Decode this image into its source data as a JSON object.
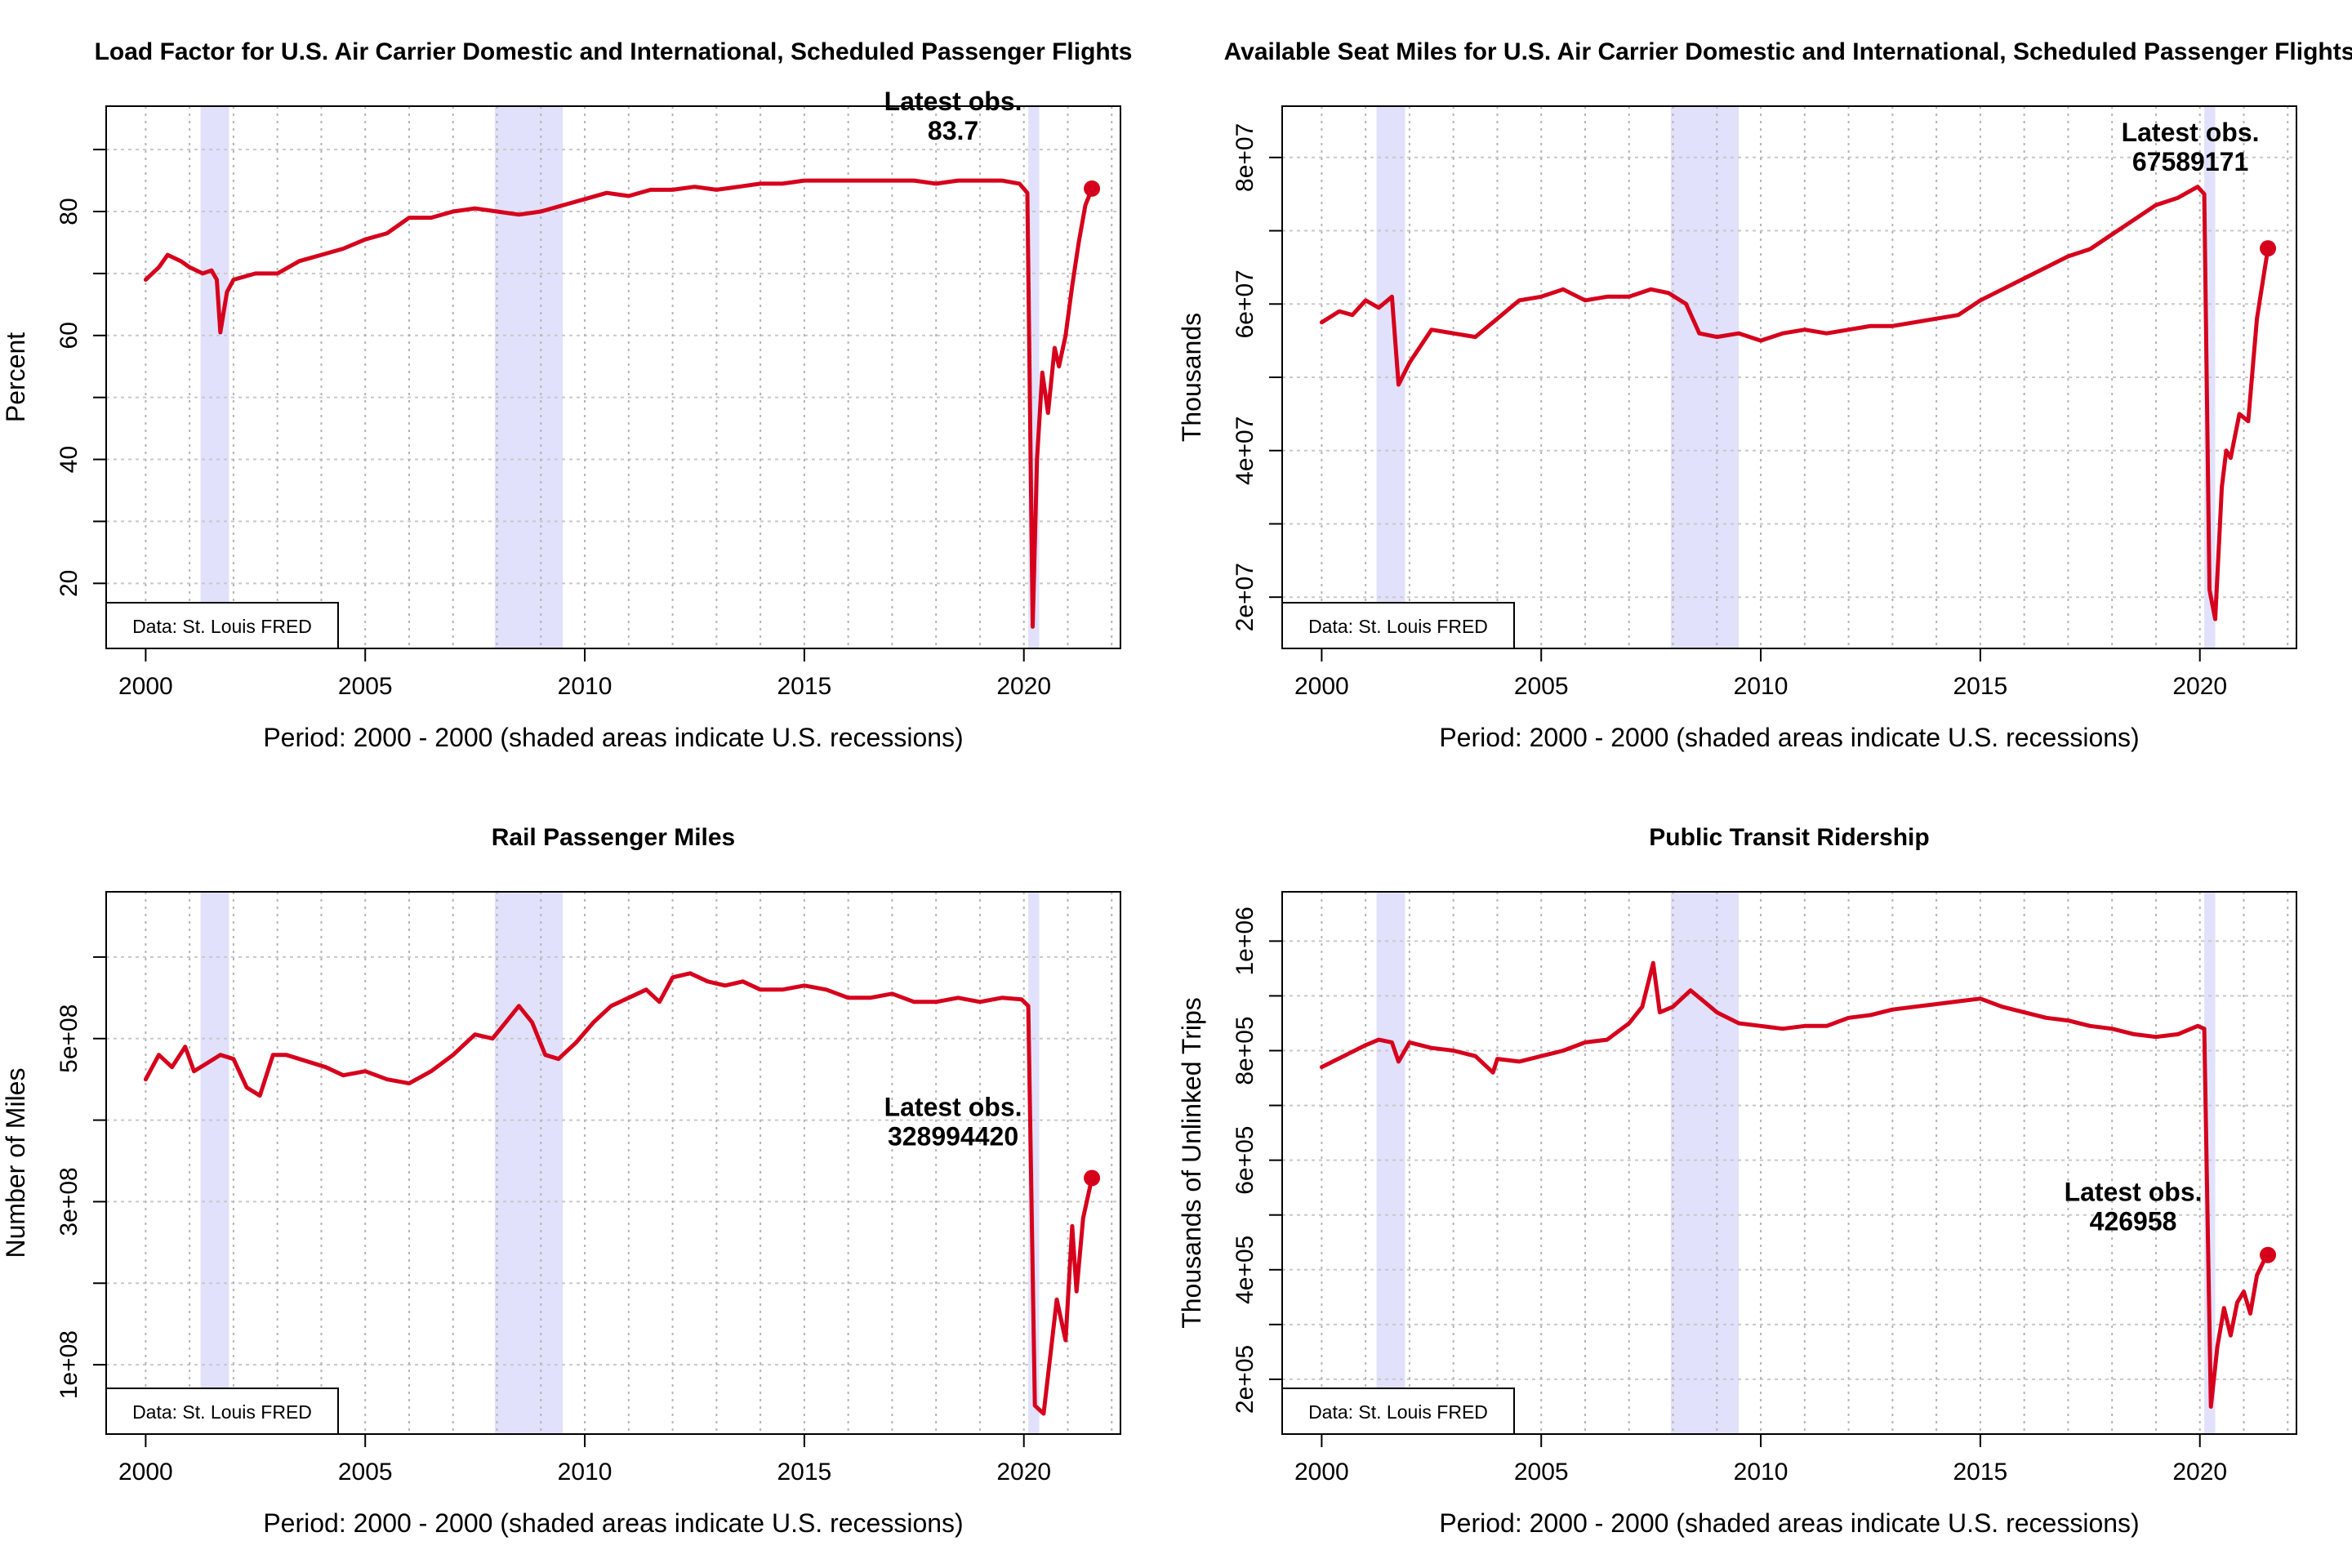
{
  "chart_data": [
    {
      "type": "line",
      "title": "Load Factor for U.S. Air Carrier Domestic and International, Scheduled Passenger Flights",
      "xlabel": "Period: 2000 - 2000 (shaded areas indicate U.S. recessions)",
      "ylabel": "Percent",
      "xlim": [
        1999.1,
        2022.2
      ],
      "ylim": [
        9.5,
        97
      ],
      "xticks": [
        2000,
        2005,
        2010,
        2015,
        2020
      ],
      "xtick_labels": [
        "2000",
        "2005",
        "2010",
        "2015",
        "2020"
      ],
      "yticks": [
        20,
        40,
        60,
        80
      ],
      "ytick_labels": [
        "20",
        "40",
        "60",
        "80"
      ],
      "ygrid": [
        20,
        30,
        40,
        50,
        60,
        70,
        80,
        90
      ],
      "recessions": [
        [
          2001.25,
          2001.9
        ],
        [
          2007.95,
          2009.5
        ],
        [
          2020.1,
          2020.35
        ]
      ],
      "series": [
        {
          "color": "#d6001c",
          "x": [
            2000.0,
            2000.3,
            2000.5,
            2000.8,
            2001.0,
            2001.3,
            2001.5,
            2001.62,
            2001.7,
            2001.85,
            2002.0,
            2002.5,
            2003.0,
            2003.5,
            2004.0,
            2004.5,
            2005.0,
            2005.5,
            2006.0,
            2006.5,
            2007.0,
            2007.5,
            2008.0,
            2008.5,
            2009.0,
            2009.5,
            2010.0,
            2010.5,
            2011.0,
            2011.5,
            2012.0,
            2012.5,
            2013.0,
            2013.5,
            2014.0,
            2014.5,
            2015.0,
            2015.5,
            2016.0,
            2016.5,
            2017.0,
            2017.5,
            2018.0,
            2018.5,
            2019.0,
            2019.5,
            2019.9,
            2020.08,
            2020.2,
            2020.3,
            2020.42,
            2020.55,
            2020.7,
            2020.8,
            2020.95,
            2021.1,
            2021.25,
            2021.4,
            2021.55
          ],
          "y": [
            69,
            71,
            73,
            72,
            71,
            70,
            70.5,
            69,
            60.5,
            67,
            69,
            70,
            70,
            72,
            73,
            74,
            75.5,
            76.5,
            79,
            79,
            80,
            80.5,
            80,
            79.5,
            80,
            81,
            82,
            83,
            82.5,
            83.5,
            83.5,
            84,
            83.5,
            84,
            84.5,
            84.5,
            85,
            85,
            85,
            85,
            85,
            85,
            84.5,
            85,
            85,
            85,
            84.5,
            83,
            13,
            40,
            54,
            47.5,
            58,
            55,
            60,
            68,
            75,
            81,
            83.7
          ]
        }
      ],
      "legend_box": "Data: St. Louis FRED",
      "annotation": {
        "line1": "Latest obs.",
        "line2": "83.7"
      }
    },
    {
      "type": "line",
      "title": "Available Seat Miles for U.S. Air Carrier Domestic and International, Scheduled Passenger Flights",
      "xlabel": "Period: 2000 - 2000 (shaded areas indicate U.S. recessions)",
      "ylabel": "Thousands",
      "xlim": [
        1999.1,
        2022.2
      ],
      "ylim": [
        13000000,
        87000000
      ],
      "xticks": [
        2000,
        2005,
        2010,
        2015,
        2020
      ],
      "xtick_labels": [
        "2000",
        "2005",
        "2010",
        "2015",
        "2020"
      ],
      "yticks": [
        20000000,
        40000000,
        60000000,
        80000000
      ],
      "ytick_labels": [
        "2e+07",
        "4e+07",
        "6e+07",
        "8e+07"
      ],
      "ygrid": [
        20000000,
        30000000,
        40000000,
        50000000,
        60000000,
        70000000,
        80000000
      ],
      "recessions": [
        [
          2001.25,
          2001.9
        ],
        [
          2007.95,
          2009.5
        ],
        [
          2020.1,
          2020.35
        ]
      ],
      "series": [
        {
          "color": "#d6001c",
          "x": [
            2000.0,
            2000.4,
            2000.7,
            2001.0,
            2001.3,
            2001.6,
            2001.75,
            2002.0,
            2002.5,
            2003.0,
            2003.5,
            2004.0,
            2004.5,
            2005.0,
            2005.5,
            2006.0,
            2006.5,
            2007.0,
            2007.5,
            2007.9,
            2008.3,
            2008.6,
            2009.0,
            2009.5,
            2010.0,
            2010.5,
            2011.0,
            2011.5,
            2012.0,
            2012.5,
            2013.0,
            2013.5,
            2014.0,
            2014.5,
            2015.0,
            2015.5,
            2016.0,
            2016.5,
            2017.0,
            2017.5,
            2018.0,
            2018.5,
            2019.0,
            2019.5,
            2019.95,
            2020.1,
            2020.22,
            2020.35,
            2020.5,
            2020.6,
            2020.7,
            2020.9,
            2021.1,
            2021.3,
            2021.55
          ],
          "y": [
            57500000,
            59000000,
            58500000,
            60500000,
            59500000,
            61000000,
            49000000,
            52000000,
            56500000,
            56000000,
            55500000,
            58000000,
            60500000,
            61000000,
            62000000,
            60500000,
            61000000,
            61000000,
            62000000,
            61500000,
            60000000,
            56000000,
            55500000,
            56000000,
            55000000,
            56000000,
            56500000,
            56000000,
            56500000,
            57000000,
            57000000,
            57500000,
            58000000,
            58500000,
            60500000,
            62000000,
            63500000,
            65000000,
            66500000,
            67500000,
            69500000,
            71500000,
            73500000,
            74500000,
            76000000,
            75000000,
            21000000,
            17000000,
            35000000,
            40000000,
            39000000,
            45000000,
            44000000,
            58000000,
            67589171
          ]
        }
      ],
      "legend_box": "Data: St. Louis FRED",
      "annotation": {
        "line1": "Latest obs.",
        "line2": "67589171"
      }
    },
    {
      "type": "line",
      "title": "Rail Passenger Miles",
      "xlabel": "Period: 2000 - 2000 (shaded areas indicate U.S. recessions)",
      "ylabel": "Number of Miles",
      "xlim": [
        1999.1,
        2022.2
      ],
      "ylim": [
        15000000,
        680000000
      ],
      "xticks": [
        2000,
        2005,
        2010,
        2015,
        2020
      ],
      "xtick_labels": [
        "2000",
        "2005",
        "2010",
        "2015",
        "2020"
      ],
      "yticks": [
        100000000,
        300000000,
        500000000
      ],
      "ytick_labels": [
        "1e+08",
        "3e+08",
        "5e+08"
      ],
      "ygrid": [
        100000000,
        200000000,
        300000000,
        400000000,
        500000000,
        600000000
      ],
      "recessions": [
        [
          2001.25,
          2001.9
        ],
        [
          2007.95,
          2009.5
        ],
        [
          2020.1,
          2020.35
        ]
      ],
      "series": [
        {
          "color": "#d6001c",
          "x": [
            2000.0,
            2000.3,
            2000.6,
            2000.9,
            2001.1,
            2001.4,
            2001.7,
            2002.0,
            2002.3,
            2002.6,
            2002.9,
            2003.2,
            2003.5,
            2003.8,
            2004.1,
            2004.5,
            2005.0,
            2005.5,
            2006.0,
            2006.5,
            2007.0,
            2007.5,
            2007.9,
            2008.2,
            2008.5,
            2008.8,
            2009.1,
            2009.4,
            2009.8,
            2010.2,
            2010.6,
            2011.0,
            2011.4,
            2011.7,
            2012.0,
            2012.4,
            2012.8,
            2013.2,
            2013.6,
            2014.0,
            2014.5,
            2015.0,
            2015.5,
            2016.0,
            2016.5,
            2017.0,
            2017.5,
            2018.0,
            2018.5,
            2019.0,
            2019.5,
            2019.95,
            2020.1,
            2020.25,
            2020.45,
            2020.6,
            2020.75,
            2020.95,
            2021.1,
            2021.2,
            2021.35,
            2021.55
          ],
          "y": [
            450000000,
            480000000,
            465000000,
            490000000,
            460000000,
            470000000,
            480000000,
            475000000,
            440000000,
            430000000,
            480000000,
            480000000,
            475000000,
            470000000,
            465000000,
            455000000,
            460000000,
            450000000,
            445000000,
            460000000,
            480000000,
            505000000,
            500000000,
            520000000,
            540000000,
            520000000,
            480000000,
            475000000,
            495000000,
            520000000,
            540000000,
            550000000,
            560000000,
            545000000,
            575000000,
            580000000,
            570000000,
            565000000,
            570000000,
            560000000,
            560000000,
            565000000,
            560000000,
            550000000,
            550000000,
            555000000,
            545000000,
            545000000,
            550000000,
            545000000,
            550000000,
            548000000,
            540000000,
            50000000,
            40000000,
            110000000,
            180000000,
            130000000,
            270000000,
            190000000,
            280000000,
            328994420
          ]
        }
      ],
      "legend_box": "Data: St. Louis FRED",
      "annotation": {
        "line1": "Latest obs.",
        "line2": "328994420"
      }
    },
    {
      "type": "line",
      "title": "Public Transit Ridership",
      "xlabel": "Period: 2000 - 2000 (shaded areas indicate U.S. recessions)",
      "ylabel": "Thousands of Unlinked Trips",
      "xlim": [
        1999.1,
        2022.2
      ],
      "ylim": [
        100000,
        1090000
      ],
      "xticks": [
        2000,
        2005,
        2010,
        2015,
        2020
      ],
      "xtick_labels": [
        "2000",
        "2005",
        "2010",
        "2015",
        "2020"
      ],
      "yticks": [
        200000,
        400000,
        600000,
        800000,
        1000000
      ],
      "ytick_labels": [
        "2e+05",
        "4e+05",
        "6e+05",
        "8e+05",
        "1e+06"
      ],
      "ygrid": [
        200000,
        300000,
        400000,
        500000,
        600000,
        700000,
        800000,
        900000,
        1000000
      ],
      "recessions": [
        [
          2001.25,
          2001.9
        ],
        [
          2007.95,
          2009.5
        ],
        [
          2020.1,
          2020.35
        ]
      ],
      "series": [
        {
          "color": "#d6001c",
          "x": [
            2000.0,
            2000.5,
            2001.0,
            2001.3,
            2001.6,
            2001.75,
            2002.0,
            2002.5,
            2003.0,
            2003.5,
            2003.9,
            2004.0,
            2004.5,
            2005.0,
            2005.5,
            2006.0,
            2006.5,
            2007.0,
            2007.3,
            2007.55,
            2007.7,
            2008.0,
            2008.4,
            2008.7,
            2009.0,
            2009.5,
            2010.0,
            2010.5,
            2011.0,
            2011.5,
            2012.0,
            2012.5,
            2013.0,
            2013.5,
            2014.0,
            2014.5,
            2015.0,
            2015.5,
            2016.0,
            2016.5,
            2017.0,
            2017.5,
            2018.0,
            2018.5,
            2019.0,
            2019.5,
            2019.95,
            2020.1,
            2020.25,
            2020.4,
            2020.55,
            2020.7,
            2020.85,
            2021.0,
            2021.15,
            2021.3,
            2021.45,
            2021.55
          ],
          "y": [
            770000,
            790000,
            810000,
            820000,
            815000,
            780000,
            815000,
            805000,
            800000,
            790000,
            760000,
            785000,
            780000,
            790000,
            800000,
            815000,
            820000,
            850000,
            880000,
            960000,
            870000,
            880000,
            910000,
            890000,
            870000,
            850000,
            845000,
            840000,
            845000,
            845000,
            860000,
            865000,
            875000,
            880000,
            885000,
            890000,
            895000,
            880000,
            870000,
            860000,
            855000,
            845000,
            840000,
            830000,
            825000,
            830000,
            845000,
            840000,
            150000,
            260000,
            330000,
            280000,
            340000,
            360000,
            320000,
            390000,
            415000,
            426958
          ]
        }
      ],
      "legend_box": "Data: St. Louis FRED",
      "annotation": {
        "line1": "Latest obs.",
        "line2": "426958"
      }
    }
  ]
}
